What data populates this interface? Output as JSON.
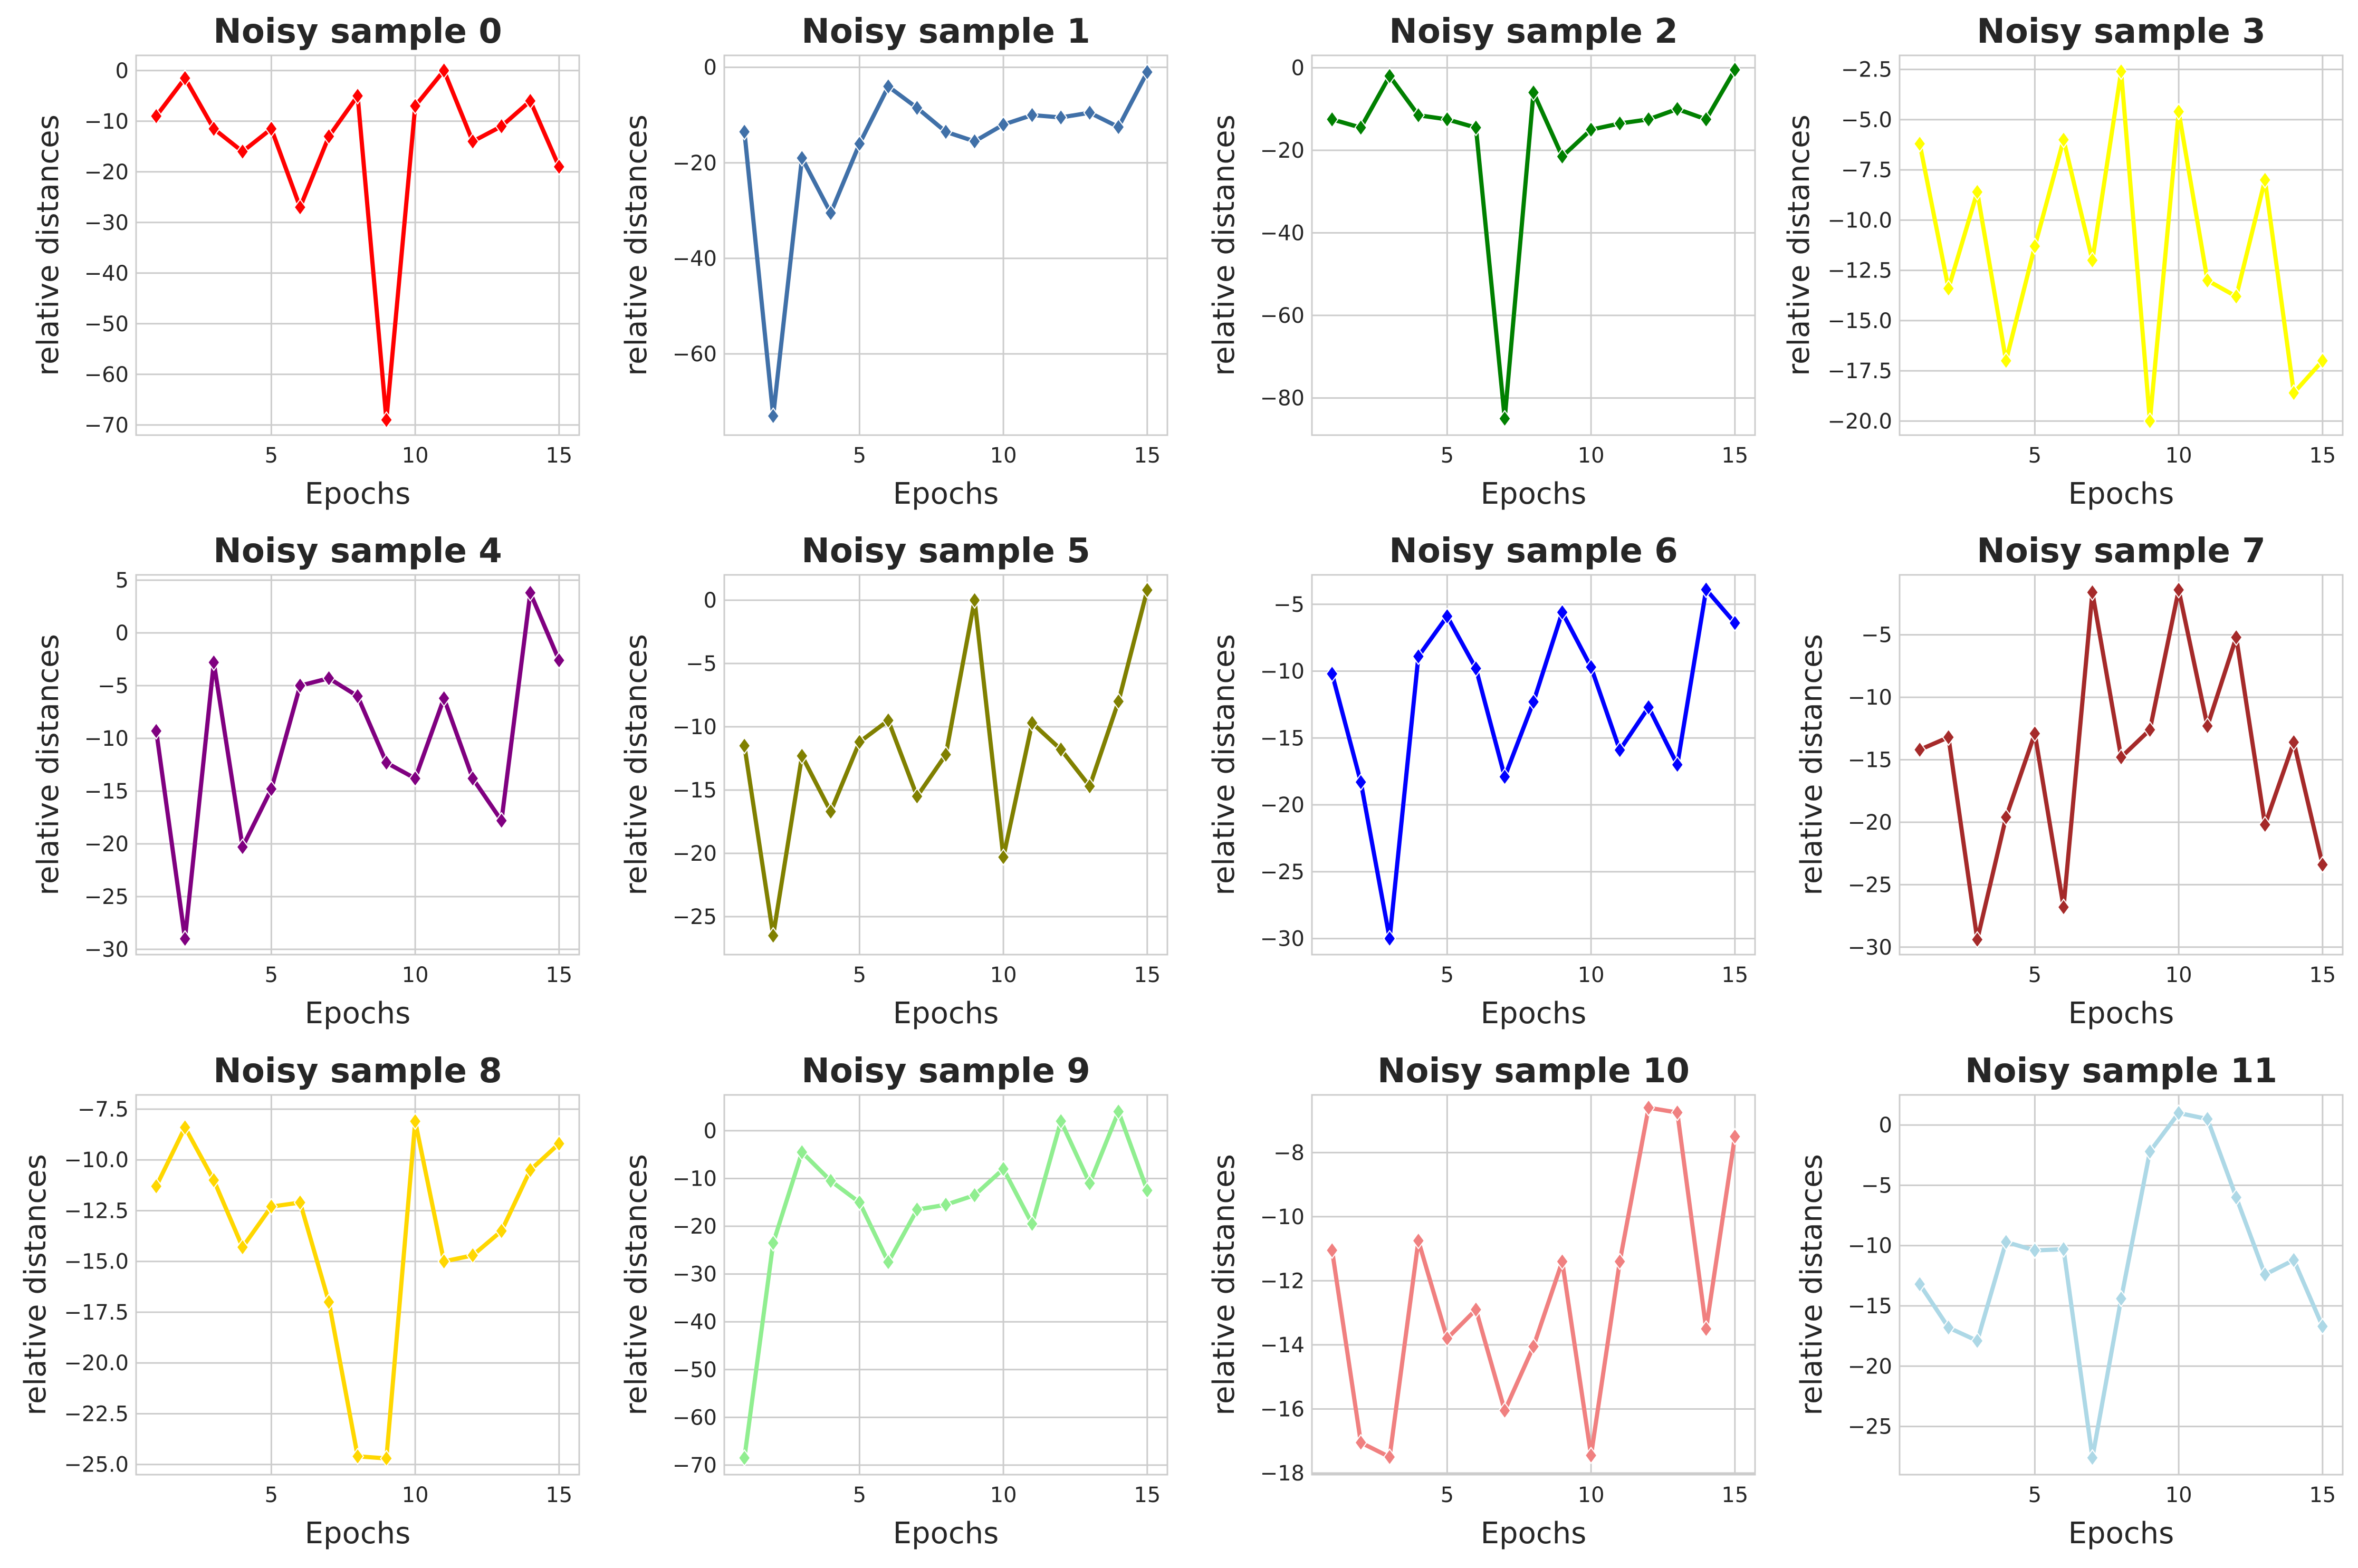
{
  "chart_data": [
    {
      "type": "line",
      "title": "Noisy sample 0",
      "xlabel": "Epochs",
      "ylabel": "relative distances",
      "color": "#ff0000",
      "x": [
        1,
        2,
        3,
        4,
        5,
        6,
        7,
        8,
        9,
        10,
        11,
        12,
        13,
        14,
        15
      ],
      "values": [
        -9,
        -1.5,
        -11.5,
        -16,
        -11.5,
        -27,
        -13,
        -5,
        -69,
        -7,
        0,
        -14,
        -11,
        -6,
        -19
      ],
      "xlim": [
        0.3,
        15.7
      ],
      "ylim": [
        -72,
        3
      ],
      "xticks": [
        5,
        10,
        15
      ],
      "yticks": [
        0,
        -10,
        -20,
        -30,
        -40,
        -50,
        -60,
        -70
      ]
    },
    {
      "type": "line",
      "title": "Noisy sample 1",
      "xlabel": "Epochs",
      "ylabel": "relative distances",
      "color": "#4070a8",
      "x": [
        1,
        2,
        3,
        4,
        5,
        6,
        7,
        8,
        9,
        10,
        11,
        12,
        13,
        14,
        15
      ],
      "values": [
        -13.5,
        -73,
        -19,
        -30.5,
        -16,
        -4,
        -8.5,
        -13.5,
        -15.5,
        -12,
        -10,
        -10.5,
        -9.5,
        -12.5,
        -1
      ],
      "xlim": [
        0.3,
        15.7
      ],
      "ylim": [
        -77,
        2.5
      ],
      "xticks": [
        5,
        10,
        15
      ],
      "yticks": [
        0,
        -20,
        -40,
        -60
      ]
    },
    {
      "type": "line",
      "title": "Noisy sample 2",
      "xlabel": "Epochs",
      "ylabel": "relative distances",
      "color": "#008000",
      "x": [
        1,
        2,
        3,
        4,
        5,
        6,
        7,
        8,
        9,
        10,
        11,
        12,
        13,
        14,
        15
      ],
      "values": [
        -12.5,
        -14.5,
        -2,
        -11.5,
        -12.5,
        -14.5,
        -85,
        -6,
        -21.5,
        -15,
        -13.5,
        -12.5,
        -10,
        -12.5,
        -0.5
      ],
      "xlim": [
        0.3,
        15.7
      ],
      "ylim": [
        -89,
        3
      ],
      "xticks": [
        5,
        10,
        15
      ],
      "yticks": [
        0,
        -20,
        -40,
        -60,
        -80
      ]
    },
    {
      "type": "line",
      "title": "Noisy sample 3",
      "xlabel": "Epochs",
      "ylabel": "relative distances",
      "color": "#ffff00",
      "x": [
        1,
        2,
        3,
        4,
        5,
        6,
        7,
        8,
        9,
        10,
        11,
        12,
        13,
        14,
        15
      ],
      "values": [
        -6.2,
        -13.4,
        -8.6,
        -17,
        -11.3,
        -6,
        -12,
        -2.6,
        -20,
        -4.6,
        -13,
        -13.8,
        -8,
        -18.6,
        -17
      ],
      "xlim": [
        0.3,
        15.7
      ],
      "ylim": [
        -20.7,
        -1.8
      ],
      "xticks": [
        5,
        10,
        15
      ],
      "yticks": [
        -2.5,
        -5.0,
        -7.5,
        -10.0,
        -12.5,
        -15.0,
        -17.5,
        -20.0
      ]
    },
    {
      "type": "line",
      "title": "Noisy sample 4",
      "xlabel": "Epochs",
      "ylabel": "relative distances",
      "color": "#800080",
      "x": [
        1,
        2,
        3,
        4,
        5,
        6,
        7,
        8,
        9,
        10,
        11,
        12,
        13,
        14,
        15
      ],
      "values": [
        -9.3,
        -29,
        -2.8,
        -20.3,
        -14.8,
        -5,
        -4.3,
        -6,
        -12.3,
        -13.8,
        -6.2,
        -13.8,
        -17.8,
        3.8,
        -2.6
      ],
      "xlim": [
        0.3,
        15.7
      ],
      "ylim": [
        -30.5,
        5.5
      ],
      "xticks": [
        5,
        10,
        15
      ],
      "yticks": [
        5,
        0,
        -5,
        -10,
        -15,
        -20,
        -25,
        -30
      ]
    },
    {
      "type": "line",
      "title": "Noisy sample 5",
      "xlabel": "Epochs",
      "ylabel": "relative distances",
      "color": "#808000",
      "x": [
        1,
        2,
        3,
        4,
        5,
        6,
        7,
        8,
        9,
        10,
        11,
        12,
        13,
        14,
        15
      ],
      "values": [
        -11.5,
        -26.5,
        -12.3,
        -16.7,
        -11.2,
        -9.5,
        -15.5,
        -12.2,
        0,
        -20.3,
        -9.7,
        -11.8,
        -14.7,
        -8,
        0.8
      ],
      "xlim": [
        0.3,
        15.7
      ],
      "ylim": [
        -28,
        2
      ],
      "xticks": [
        5,
        10,
        15
      ],
      "yticks": [
        0,
        -5,
        -10,
        -15,
        -20,
        -25
      ]
    },
    {
      "type": "line",
      "title": "Noisy sample 6",
      "xlabel": "Epochs",
      "ylabel": "relative distances",
      "color": "#0000ff",
      "x": [
        1,
        2,
        3,
        4,
        5,
        6,
        7,
        8,
        9,
        10,
        11,
        12,
        13,
        14,
        15
      ],
      "values": [
        -10.2,
        -18.3,
        -30,
        -8.9,
        -5.9,
        -9.8,
        -17.9,
        -12.3,
        -5.6,
        -9.7,
        -15.9,
        -12.7,
        -17,
        -3.9,
        -6.4
      ],
      "xlim": [
        0.3,
        15.7
      ],
      "ylim": [
        -31.2,
        -2.8
      ],
      "xticks": [
        5,
        10,
        15
      ],
      "yticks": [
        -5,
        -10,
        -15,
        -20,
        -25,
        -30
      ]
    },
    {
      "type": "line",
      "title": "Noisy sample 7",
      "xlabel": "Epochs",
      "ylabel": "relative distances",
      "color": "#a52a2a",
      "x": [
        1,
        2,
        3,
        4,
        5,
        6,
        7,
        8,
        9,
        10,
        11,
        12,
        13,
        14,
        15
      ],
      "values": [
        -14.2,
        -13.2,
        -29.4,
        -19.6,
        -12.9,
        -26.8,
        -1.6,
        -14.8,
        -12.6,
        -1.4,
        -12.3,
        -5.2,
        -20.2,
        -13.6,
        -23.4
      ],
      "xlim": [
        0.3,
        15.7
      ],
      "ylim": [
        -30.6,
        -0.2
      ],
      "xticks": [
        5,
        10,
        15
      ],
      "yticks": [
        -5,
        -10,
        -15,
        -20,
        -25,
        -30
      ]
    },
    {
      "type": "line",
      "title": "Noisy sample 8",
      "xlabel": "Epochs",
      "ylabel": "relative distances",
      "color": "#ffd700",
      "x": [
        1,
        2,
        3,
        4,
        5,
        6,
        7,
        8,
        9,
        10,
        11,
        12,
        13,
        14,
        15
      ],
      "values": [
        -11.3,
        -8.4,
        -11,
        -14.3,
        -12.3,
        -12.1,
        -17,
        -24.6,
        -24.7,
        -8.1,
        -15,
        -14.7,
        -13.5,
        -10.5,
        -9.2
      ],
      "xlim": [
        0.3,
        15.7
      ],
      "ylim": [
        -25.5,
        -6.8
      ],
      "xticks": [
        5,
        10,
        15
      ],
      "yticks": [
        -7.5,
        -10.0,
        -12.5,
        -15.0,
        -17.5,
        -20.0,
        -22.5,
        -25.0
      ]
    },
    {
      "type": "line",
      "title": "Noisy sample 9",
      "xlabel": "Epochs",
      "ylabel": "relative distances",
      "color": "#90ee90",
      "x": [
        1,
        2,
        3,
        4,
        5,
        6,
        7,
        8,
        9,
        10,
        11,
        12,
        13,
        14,
        15
      ],
      "values": [
        -68.5,
        -23.5,
        -4.5,
        -10.5,
        -15,
        -27.5,
        -16.5,
        -15.5,
        -13.5,
        -8,
        -19.5,
        2,
        -11,
        4,
        -12.5
      ],
      "xlim": [
        0.3,
        15.7
      ],
      "ylim": [
        -72,
        7.5
      ],
      "xticks": [
        5,
        10,
        15
      ],
      "yticks": [
        0,
        -10,
        -20,
        -30,
        -40,
        -50,
        -60,
        -70
      ]
    },
    {
      "type": "line",
      "title": "Noisy sample 10",
      "xlabel": "Epochs",
      "ylabel": "relative distances",
      "color": "#f08080",
      "x": [
        1,
        2,
        3,
        4,
        5,
        6,
        7,
        8,
        9,
        10,
        11,
        12,
        13,
        14,
        15
      ],
      "values": [
        -11.05,
        -17.05,
        -17.5,
        -10.75,
        -13.8,
        -12.9,
        -16.05,
        -14.05,
        -11.4,
        -17.45,
        -11.4,
        -6.6,
        -6.75,
        -13.5,
        -7.5
      ],
      "xlim": [
        0.3,
        15.7
      ],
      "ylim": [
        -18.05,
        -6.2
      ],
      "xticks": [
        5,
        10,
        15
      ],
      "yticks": [
        -8,
        -10,
        -12,
        -14,
        -16,
        -18
      ]
    },
    {
      "type": "line",
      "title": "Noisy sample 11",
      "xlabel": "Epochs",
      "ylabel": "relative distances",
      "color": "#add8e6",
      "x": [
        1,
        2,
        3,
        4,
        5,
        6,
        7,
        8,
        9,
        10,
        11,
        12,
        13,
        14,
        15
      ],
      "values": [
        -13.2,
        -16.8,
        -17.9,
        -9.7,
        -10.4,
        -10.3,
        -27.6,
        -14.4,
        -2.2,
        1,
        0.5,
        -6,
        -12.4,
        -11.2,
        -16.7
      ],
      "xlim": [
        0.3,
        15.7
      ],
      "ylim": [
        -29,
        2.5
      ],
      "xticks": [
        5,
        10,
        15
      ],
      "yticks": [
        0,
        -5,
        -10,
        -15,
        -20,
        -25
      ]
    }
  ]
}
